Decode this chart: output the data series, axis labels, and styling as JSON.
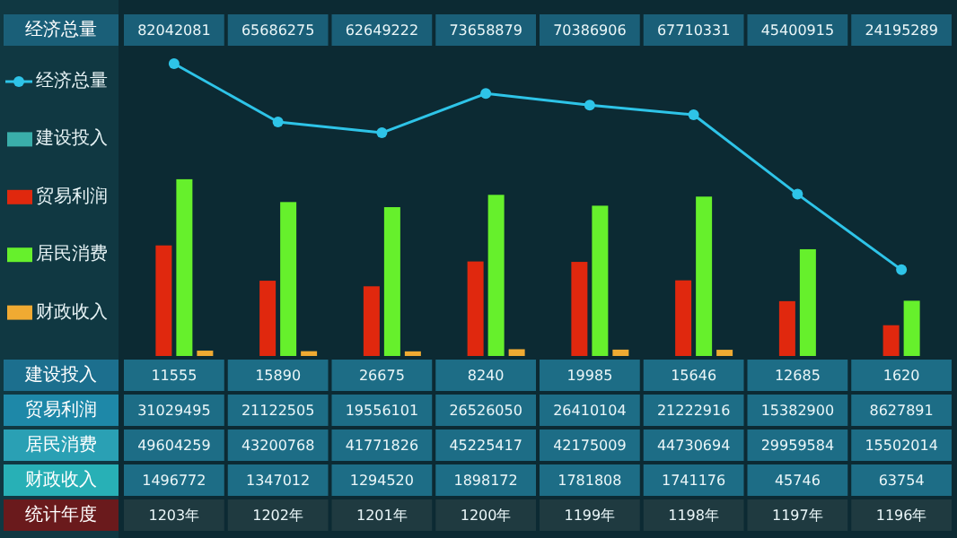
{
  "chart_data": {
    "type": "bar",
    "xlabel": "统计年度",
    "categories": [
      "1203年",
      "1202年",
      "1201年",
      "1200年",
      "1199年",
      "1198年",
      "1197年",
      "1196年"
    ],
    "series": [
      {
        "name": "经济总量",
        "type": "line",
        "color": "#2ec4e8",
        "values": [
          82042081,
          65686275,
          62649222,
          73658879,
          70386906,
          67710331,
          45400915,
          24195289
        ]
      },
      {
        "name": "建设投入",
        "color": "#3aaeaa",
        "values": [
          11555,
          15890,
          26675,
          8240,
          19985,
          15646,
          12685,
          1620
        ]
      },
      {
        "name": "贸易利润",
        "color": "#e0280e",
        "values": [
          31029495,
          21122505,
          19556101,
          26526050,
          26410104,
          21222916,
          15382900,
          8627891
        ]
      },
      {
        "name": "居民消费",
        "color": "#66f02c",
        "values": [
          49604259,
          43200768,
          41771826,
          45225417,
          42175009,
          44730694,
          29959584,
          15502014
        ]
      },
      {
        "name": "财政收入",
        "color": "#f0aa32",
        "values": [
          1496772,
          1347012,
          1294520,
          1898172,
          1781808,
          1741176,
          45746,
          63754
        ]
      }
    ],
    "marker": "circle",
    "legend": "left",
    "data_labels": true
  }
}
